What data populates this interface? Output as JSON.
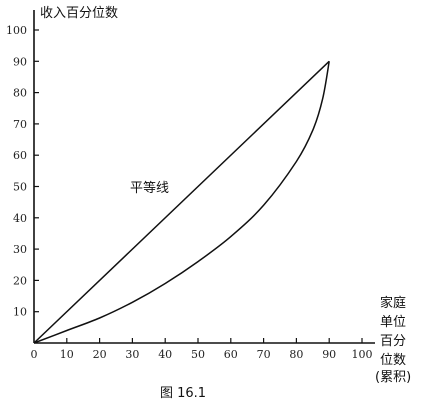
{
  "chart_data": {
    "type": "line",
    "title": "",
    "caption": "图 16.1",
    "ylabel": "收入百分位数",
    "xlabel": [
      "家庭",
      "单位",
      "百分",
      "位数",
      "(累积)"
    ],
    "xlim": [
      0,
      100
    ],
    "ylim": [
      0,
      100
    ],
    "x_ticks": [
      0,
      10,
      20,
      30,
      40,
      50,
      60,
      70,
      80,
      90,
      100
    ],
    "y_ticks": [
      10,
      20,
      30,
      40,
      50,
      60,
      70,
      80,
      90,
      100
    ],
    "x_tick_labels": [
      "0",
      "10",
      "20",
      "30",
      "40",
      "50",
      "60",
      "70",
      "80",
      "90",
      "100"
    ],
    "y_tick_labels": [
      "10",
      "20",
      "30",
      "40",
      "50",
      "60",
      "70",
      "80",
      "90",
      "100"
    ],
    "grid": false,
    "annotations": [
      {
        "text": "平等线",
        "x": 35,
        "y": 50
      }
    ],
    "series": [
      {
        "name": "",
        "points": [
          [
            0,
            0
          ],
          [
            90,
            90
          ]
        ]
      },
      {
        "name": "",
        "points": [
          [
            0,
            0
          ],
          [
            10,
            4
          ],
          [
            20,
            8
          ],
          [
            30,
            13
          ],
          [
            40,
            19
          ],
          [
            50,
            26
          ],
          [
            60,
            34
          ],
          [
            70,
            44
          ],
          [
            80,
            58
          ],
          [
            85,
            68
          ],
          [
            88,
            78
          ],
          [
            90,
            90
          ]
        ]
      }
    ]
  }
}
